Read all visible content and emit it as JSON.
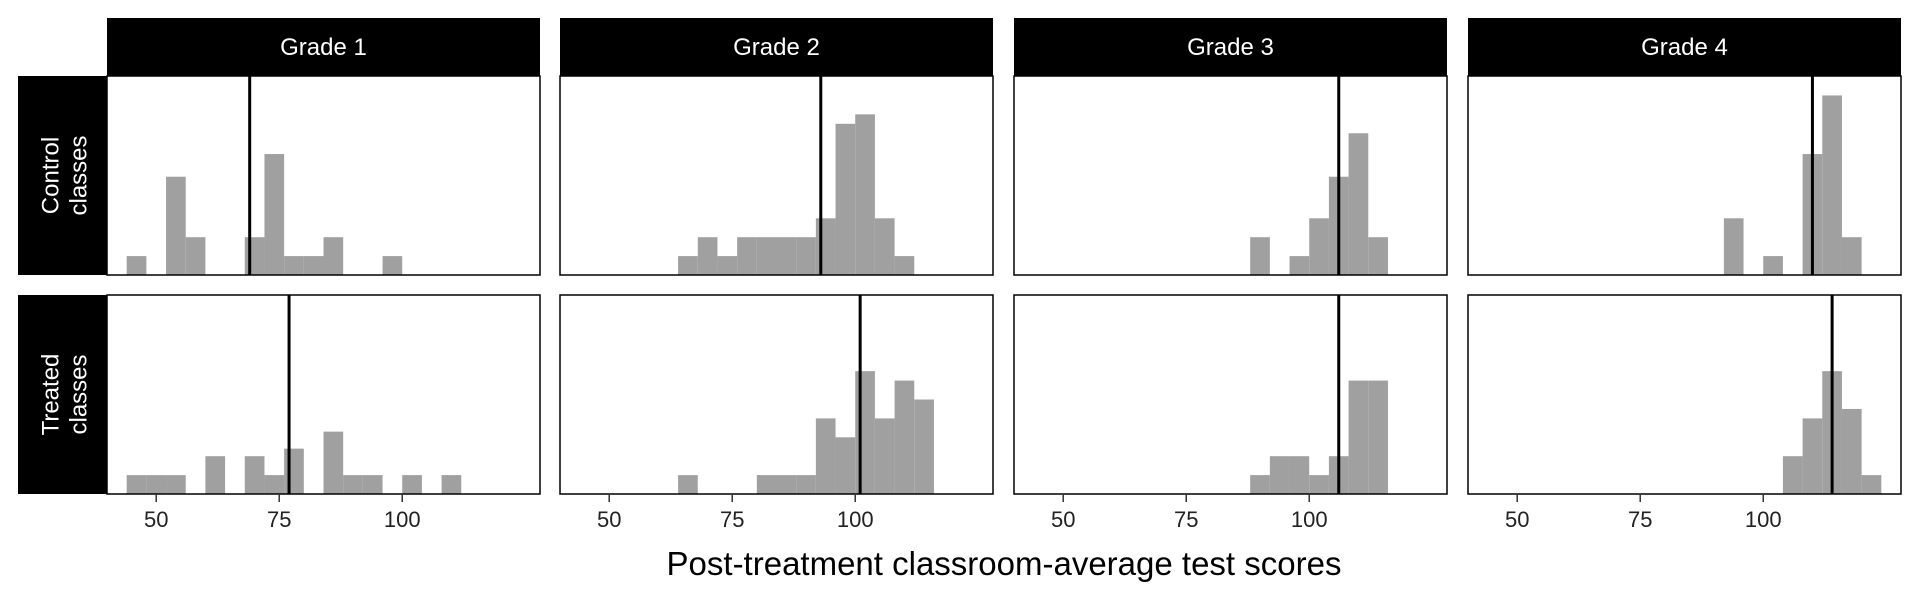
{
  "chart_data": {
    "type": "histogram-facets",
    "xlabel": "Post-treatment classroom-average test scores",
    "ylabel": "",
    "x_ticks": [
      "50",
      "75",
      "100"
    ],
    "xlim": [
      40,
      128
    ],
    "bin_width": 4,
    "columns": [
      "Grade 1",
      "Grade 2",
      "Grade 3",
      "Grade 4"
    ],
    "rows": [
      {
        "label_line1": "Control",
        "label_line2": "classes"
      },
      {
        "label_line1": "Treated",
        "label_line2": "classes"
      }
    ],
    "bar_color": "#a0a0a0",
    "line_color": "#000000",
    "ymax": 5,
    "panels": [
      {
        "row": 0,
        "col": 0,
        "mean": 69,
        "bins": [
          {
            "x": 44,
            "c": 0.5
          },
          {
            "x": 52,
            "c": 2.6
          },
          {
            "x": 56,
            "c": 1
          },
          {
            "x": 68,
            "c": 1
          },
          {
            "x": 72,
            "c": 3.2
          },
          {
            "x": 76,
            "c": 0.5
          },
          {
            "x": 80,
            "c": 0.5
          },
          {
            "x": 84,
            "c": 1
          },
          {
            "x": 96,
            "c": 0.5
          }
        ]
      },
      {
        "row": 0,
        "col": 1,
        "mean": 93,
        "bins": [
          {
            "x": 64,
            "c": 0.5
          },
          {
            "x": 68,
            "c": 1
          },
          {
            "x": 72,
            "c": 0.5
          },
          {
            "x": 76,
            "c": 1
          },
          {
            "x": 80,
            "c": 1
          },
          {
            "x": 84,
            "c": 1
          },
          {
            "x": 88,
            "c": 1
          },
          {
            "x": 92,
            "c": 1.5
          },
          {
            "x": 96,
            "c": 4
          },
          {
            "x": 100,
            "c": 4.25
          },
          {
            "x": 104,
            "c": 1.5
          },
          {
            "x": 108,
            "c": 0.5
          }
        ]
      },
      {
        "row": 0,
        "col": 2,
        "mean": 106,
        "bins": [
          {
            "x": 88,
            "c": 1
          },
          {
            "x": 96,
            "c": 0.5
          },
          {
            "x": 100,
            "c": 1.5
          },
          {
            "x": 104,
            "c": 2.6
          },
          {
            "x": 108,
            "c": 3.75
          },
          {
            "x": 112,
            "c": 1
          }
        ]
      },
      {
        "row": 0,
        "col": 3,
        "mean": 110,
        "bins": [
          {
            "x": 92,
            "c": 1.5
          },
          {
            "x": 100,
            "c": 0.5
          },
          {
            "x": 108,
            "c": 3.2
          },
          {
            "x": 112,
            "c": 4.75
          },
          {
            "x": 116,
            "c": 1
          }
        ]
      },
      {
        "row": 1,
        "col": 0,
        "mean": 77,
        "bins": [
          {
            "x": 44,
            "c": 0.5
          },
          {
            "x": 48,
            "c": 0.5
          },
          {
            "x": 52,
            "c": 0.5
          },
          {
            "x": 60,
            "c": 1
          },
          {
            "x": 68,
            "c": 1
          },
          {
            "x": 72,
            "c": 0.5
          },
          {
            "x": 76,
            "c": 1.2
          },
          {
            "x": 84,
            "c": 1.65
          },
          {
            "x": 88,
            "c": 0.5
          },
          {
            "x": 92,
            "c": 0.5
          },
          {
            "x": 100,
            "c": 0.5
          },
          {
            "x": 108,
            "c": 0.5
          }
        ]
      },
      {
        "row": 1,
        "col": 1,
        "mean": 101,
        "bins": [
          {
            "x": 64,
            "c": 0.5
          },
          {
            "x": 80,
            "c": 0.5
          },
          {
            "x": 84,
            "c": 0.5
          },
          {
            "x": 88,
            "c": 0.5
          },
          {
            "x": 92,
            "c": 2
          },
          {
            "x": 96,
            "c": 1.5
          },
          {
            "x": 100,
            "c": 3.25
          },
          {
            "x": 104,
            "c": 2
          },
          {
            "x": 108,
            "c": 3
          },
          {
            "x": 112,
            "c": 2.5
          }
        ]
      },
      {
        "row": 1,
        "col": 2,
        "mean": 106,
        "bins": [
          {
            "x": 88,
            "c": 0.5
          },
          {
            "x": 92,
            "c": 1
          },
          {
            "x": 96,
            "c": 1
          },
          {
            "x": 100,
            "c": 0.5
          },
          {
            "x": 104,
            "c": 1
          },
          {
            "x": 108,
            "c": 3
          },
          {
            "x": 112,
            "c": 3
          }
        ]
      },
      {
        "row": 1,
        "col": 3,
        "mean": 114,
        "bins": [
          {
            "x": 104,
            "c": 1
          },
          {
            "x": 108,
            "c": 2
          },
          {
            "x": 112,
            "c": 3.25
          },
          {
            "x": 116,
            "c": 2.25
          },
          {
            "x": 120,
            "c": 0.5
          }
        ]
      }
    ]
  }
}
